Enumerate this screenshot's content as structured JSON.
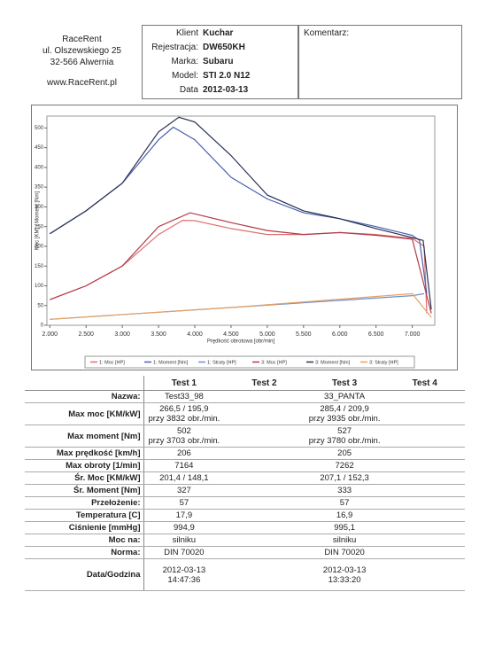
{
  "company": {
    "name": "RaceRent",
    "street": "ul. Olszewskiego 25",
    "city": "32-566 Alwernia",
    "web": "www.RaceRent.pl"
  },
  "info": [
    {
      "label": "Klient",
      "value": "Kuchar"
    },
    {
      "label": "Rejestracja:",
      "value": "DW650KH"
    },
    {
      "label": "Marka:",
      "value": "Subaru"
    },
    {
      "label": "Model:",
      "value": "STI 2.0 N12"
    },
    {
      "label": "Data",
      "value": "2012-03-13"
    }
  ],
  "comment": {
    "label": "Komentarz:"
  },
  "chart": {
    "type": "line",
    "x_label": "Prędkość obrotowa [obr/min]",
    "y_label": "Moc [KM] / Moment [Nm]",
    "xlim": [
      1960,
      7310
    ],
    "ylim": [
      0,
      530
    ],
    "xticks": [
      {
        "value": 2000,
        "label": "2.000"
      },
      {
        "value": 2500,
        "label": "2.500"
      },
      {
        "value": 3000,
        "label": "3.000"
      },
      {
        "value": 3500,
        "label": "3.500"
      },
      {
        "value": 4000,
        "label": "4.000"
      },
      {
        "value": 4500,
        "label": "4.500"
      },
      {
        "value": 5000,
        "label": "5.000"
      },
      {
        "value": 5500,
        "label": "5.500"
      },
      {
        "value": 6000,
        "label": "6.000"
      },
      {
        "value": 6500,
        "label": "6.500"
      },
      {
        "value": 7000,
        "label": "7.000"
      }
    ],
    "yticks": [
      0,
      50,
      100,
      150,
      200,
      250,
      300,
      350,
      400,
      450,
      500
    ],
    "series": [
      {
        "name": "1: Moc [HP]",
        "color": "#e07070",
        "x": [
          2000,
          2500,
          3000,
          3500,
          3832,
          4000,
          4500,
          5000,
          5500,
          6000,
          6500,
          7000,
          7164,
          7200
        ],
        "values": [
          65,
          100,
          150,
          230,
          266,
          265,
          245,
          230,
          230,
          235,
          230,
          220,
          200,
          30
        ]
      },
      {
        "name": "1: Moment [Nm]",
        "color": "#4a5fb0",
        "x": [
          2000,
          2500,
          3000,
          3500,
          3703,
          4000,
          4500,
          5000,
          5500,
          6000,
          6500,
          7000,
          7100,
          7200
        ],
        "values": [
          232,
          290,
          360,
          470,
          502,
          470,
          375,
          320,
          285,
          270,
          250,
          228,
          215,
          80
        ]
      },
      {
        "name": "1: Straty [HP]",
        "color": "#6f8fd0",
        "x": [
          2000,
          4500,
          7000,
          7164
        ],
        "values": [
          15,
          45,
          75,
          80
        ]
      },
      {
        "name": "3: Moc [HP]",
        "color": "#b03a4a",
        "x": [
          2000,
          2500,
          3000,
          3500,
          3935,
          4500,
          5000,
          5500,
          6000,
          6500,
          7000,
          7262
        ],
        "values": [
          65,
          100,
          150,
          250,
          285,
          260,
          240,
          230,
          235,
          228,
          218,
          30
        ]
      },
      {
        "name": "3: Moment [Nm]",
        "color": "#283050",
        "x": [
          2000,
          2500,
          3000,
          3500,
          3780,
          4000,
          4500,
          5000,
          5500,
          6000,
          6500,
          7000,
          7150,
          7262
        ],
        "values": [
          232,
          290,
          360,
          490,
          527,
          515,
          430,
          330,
          290,
          270,
          245,
          222,
          215,
          40
        ]
      },
      {
        "name": "3: Straty [HP]",
        "color": "#e8a060",
        "x": [
          2000,
          4500,
          7000,
          7262
        ],
        "values": [
          15,
          45,
          80,
          20
        ]
      }
    ]
  },
  "table": {
    "columns": [
      "Test 1",
      "Test 2",
      "Test 3",
      "Test 4"
    ],
    "rows": [
      {
        "label": "Nazwa:",
        "t1": [
          "Test33_98"
        ],
        "t3": [
          "33_PANTA"
        ]
      },
      {
        "label": "Max moc [KM/kW]",
        "t1": [
          "266,5 / 195,9",
          "przy 3832 obr./min."
        ],
        "t3": [
          "285,4 / 209,9",
          "przy 3935 obr./min."
        ]
      },
      {
        "label": "Max moment [Nm]",
        "t1": [
          "502",
          "przy 3703 obr./min."
        ],
        "t3": [
          "527",
          "przy 3780 obr./min."
        ]
      },
      {
        "label": "Max prędkość [km/h]",
        "t1": [
          "206"
        ],
        "t3": [
          "205"
        ]
      },
      {
        "label": "Max obroty [1/min]",
        "t1": [
          "7164"
        ],
        "t3": [
          "7262"
        ]
      },
      {
        "label": "Śr. Moc [KM/kW]",
        "t1": [
          "201,4 / 148,1"
        ],
        "t3": [
          "207,1 / 152,3"
        ]
      },
      {
        "label": "Śr. Moment [Nm]",
        "t1": [
          "327"
        ],
        "t3": [
          "333"
        ]
      },
      {
        "label": "Przełożenie:",
        "t1": [
          "57"
        ],
        "t3": [
          "57"
        ]
      },
      {
        "label": "Temperatura [C]",
        "t1": [
          "17,9"
        ],
        "t3": [
          "16,9"
        ]
      },
      {
        "label": "Ciśnienie [mmHg]",
        "t1": [
          "994,9"
        ],
        "t3": [
          "995,1"
        ]
      },
      {
        "label": "Moc na:",
        "t1": [
          "silniku"
        ],
        "t3": [
          "silniku"
        ]
      },
      {
        "label": "Norma:",
        "t1": [
          "DIN 70020"
        ],
        "t3": [
          "DIN 70020"
        ]
      },
      {
        "label": "Data/Godzina",
        "t1": [
          "2012-03-13",
          "14:47:36"
        ],
        "t3": [
          "2012-03-13",
          "13:33:20"
        ]
      }
    ]
  }
}
